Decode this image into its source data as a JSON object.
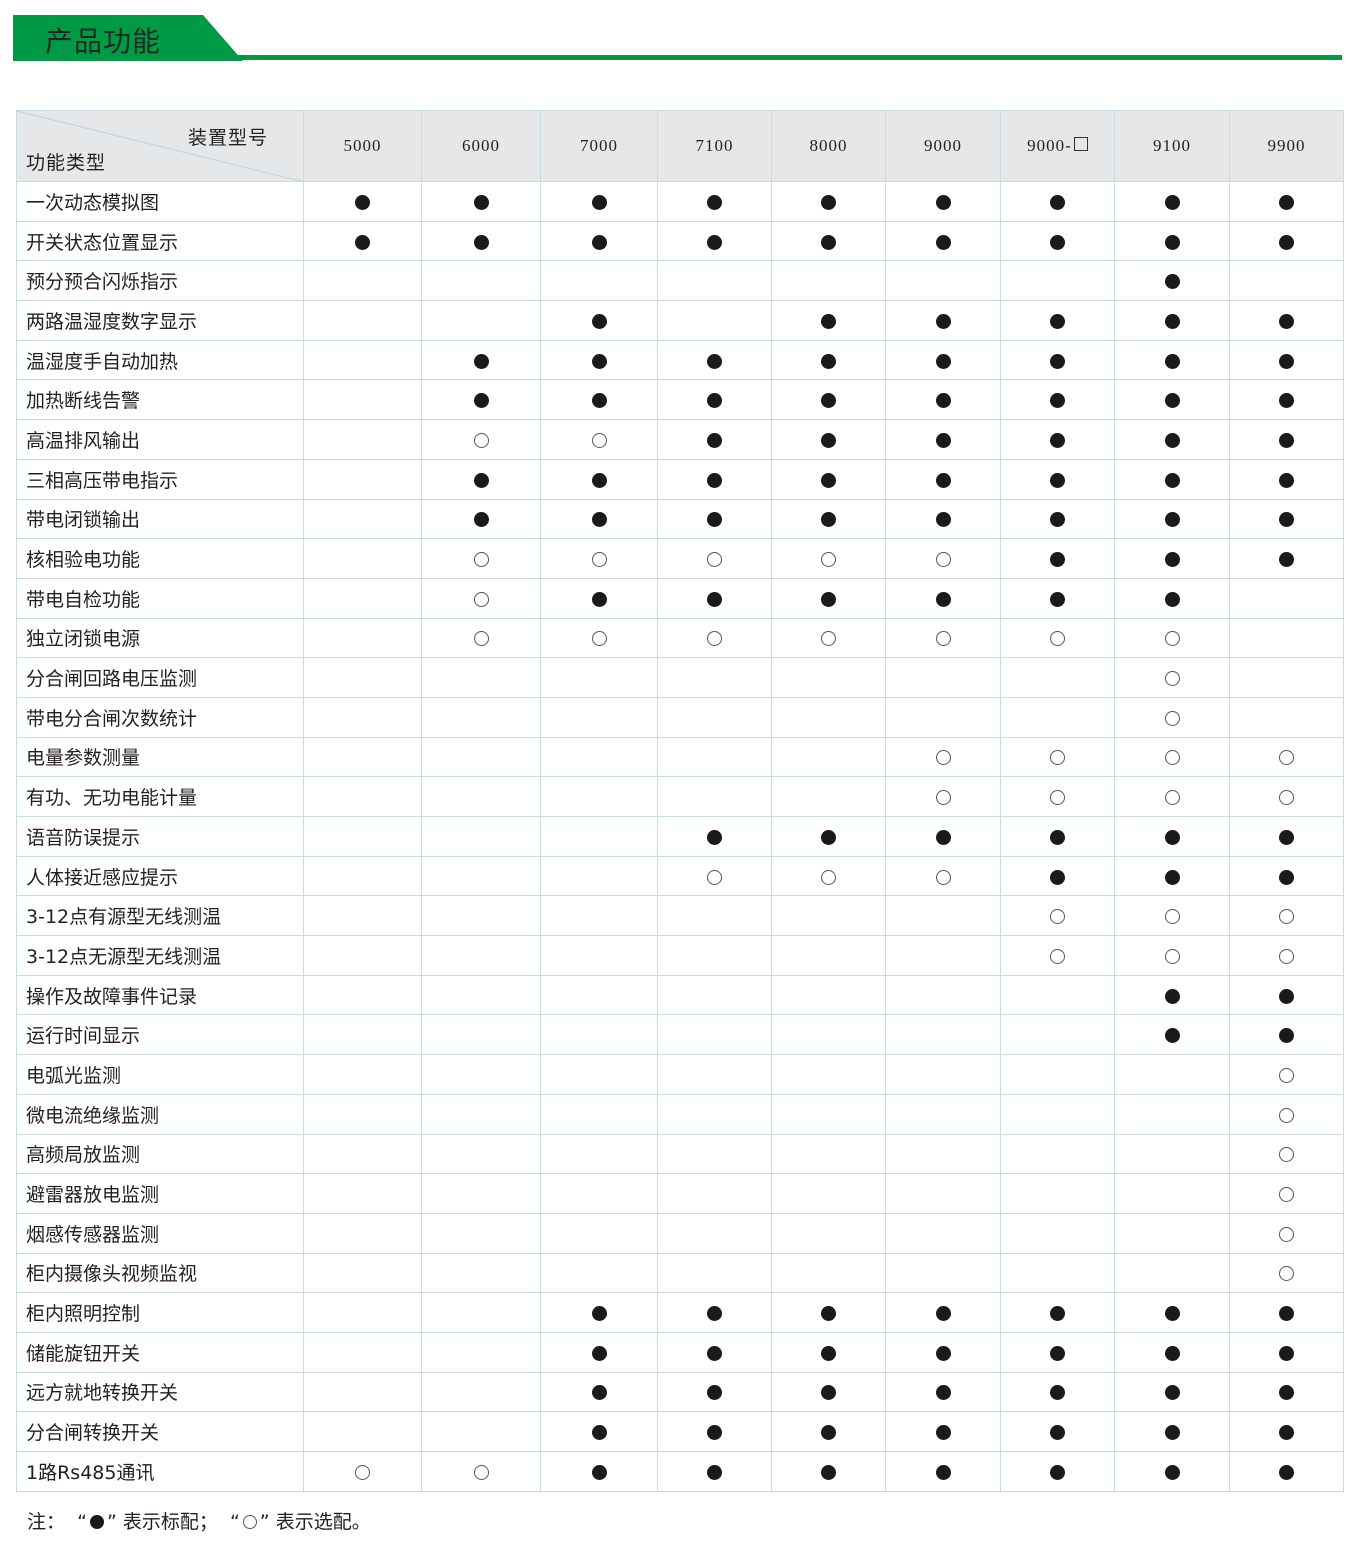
{
  "section_title": "产品功能",
  "table": {
    "corner_top_right": "装置型号",
    "corner_bottom_left": "功能类型",
    "models": [
      "5000",
      "6000",
      "7000",
      "7100",
      "8000",
      "9000",
      "9000-",
      "9100",
      "9900"
    ],
    "model_square_suffix": [
      false,
      false,
      false,
      false,
      false,
      false,
      true,
      false,
      false
    ],
    "legend_codes": {
      "S": "●",
      "O": "○"
    },
    "rows": [
      {
        "label": "一次动态模拟图",
        "values": [
          "S",
          "S",
          "S",
          "S",
          "S",
          "S",
          "S",
          "S",
          "S"
        ]
      },
      {
        "label": "开关状态位置显示",
        "values": [
          "S",
          "S",
          "S",
          "S",
          "S",
          "S",
          "S",
          "S",
          "S"
        ]
      },
      {
        "label": "预分预合闪烁指示",
        "values": [
          "",
          "",
          "",
          "",
          "",
          "",
          "",
          "S",
          ""
        ]
      },
      {
        "label": "两路温湿度数字显示",
        "values": [
          "",
          "",
          "S",
          "",
          "S",
          "S",
          "S",
          "S",
          "S"
        ]
      },
      {
        "label": "温湿度手自动加热",
        "values": [
          "",
          "S",
          "S",
          "S",
          "S",
          "S",
          "S",
          "S",
          "S"
        ]
      },
      {
        "label": "加热断线告警",
        "values": [
          "",
          "S",
          "S",
          "S",
          "S",
          "S",
          "S",
          "S",
          "S"
        ]
      },
      {
        "label": "高温排风输出",
        "values": [
          "",
          "O",
          "O",
          "S",
          "S",
          "S",
          "S",
          "S",
          "S"
        ]
      },
      {
        "label": "三相高压带电指示",
        "values": [
          "",
          "S",
          "S",
          "S",
          "S",
          "S",
          "S",
          "S",
          "S"
        ]
      },
      {
        "label": "带电闭锁输出",
        "values": [
          "",
          "S",
          "S",
          "S",
          "S",
          "S",
          "S",
          "S",
          "S"
        ]
      },
      {
        "label": "核相验电功能",
        "values": [
          "",
          "O",
          "O",
          "O",
          "O",
          "O",
          "S",
          "S",
          "S"
        ]
      },
      {
        "label": "带电自检功能",
        "values": [
          "",
          "O",
          "S",
          "S",
          "S",
          "S",
          "S",
          "S",
          ""
        ]
      },
      {
        "label": "独立闭锁电源",
        "values": [
          "",
          "O",
          "O",
          "O",
          "O",
          "O",
          "O",
          "O",
          ""
        ]
      },
      {
        "label": "分合闸回路电压监测",
        "values": [
          "",
          "",
          "",
          "",
          "",
          "",
          "",
          "O",
          ""
        ]
      },
      {
        "label": "带电分合闸次数统计",
        "values": [
          "",
          "",
          "",
          "",
          "",
          "",
          "",
          "O",
          ""
        ]
      },
      {
        "label": "电量参数测量",
        "values": [
          "",
          "",
          "",
          "",
          "",
          "O",
          "O",
          "O",
          "O"
        ]
      },
      {
        "label": "有功、无功电能计量",
        "values": [
          "",
          "",
          "",
          "",
          "",
          "O",
          "O",
          "O",
          "O"
        ]
      },
      {
        "label": "语音防误提示",
        "values": [
          "",
          "",
          "",
          "S",
          "S",
          "S",
          "S",
          "S",
          "S"
        ]
      },
      {
        "label": "人体接近感应提示",
        "values": [
          "",
          "",
          "",
          "O",
          "O",
          "O",
          "S",
          "S",
          "S"
        ]
      },
      {
        "label": "3-12点有源型无线测温",
        "values": [
          "",
          "",
          "",
          "",
          "",
          "",
          "O",
          "O",
          "O"
        ]
      },
      {
        "label": "3-12点无源型无线测温",
        "values": [
          "",
          "",
          "",
          "",
          "",
          "",
          "O",
          "O",
          "O"
        ]
      },
      {
        "label": "操作及故障事件记录",
        "values": [
          "",
          "",
          "",
          "",
          "",
          "",
          "",
          "S",
          "S"
        ]
      },
      {
        "label": "运行时间显示",
        "values": [
          "",
          "",
          "",
          "",
          "",
          "",
          "",
          "S",
          "S"
        ]
      },
      {
        "label": "电弧光监测",
        "values": [
          "",
          "",
          "",
          "",
          "",
          "",
          "",
          "",
          "O"
        ]
      },
      {
        "label": "微电流绝缘监测",
        "values": [
          "",
          "",
          "",
          "",
          "",
          "",
          "",
          "",
          "O"
        ]
      },
      {
        "label": "高频局放监测",
        "values": [
          "",
          "",
          "",
          "",
          "",
          "",
          "",
          "",
          "O"
        ]
      },
      {
        "label": "避雷器放电监测",
        "values": [
          "",
          "",
          "",
          "",
          "",
          "",
          "",
          "",
          "O"
        ]
      },
      {
        "label": "烟感传感器监测",
        "values": [
          "",
          "",
          "",
          "",
          "",
          "",
          "",
          "",
          "O"
        ]
      },
      {
        "label": "柜内摄像头视频监视",
        "values": [
          "",
          "",
          "",
          "",
          "",
          "",
          "",
          "",
          "O"
        ]
      },
      {
        "label": "柜内照明控制",
        "values": [
          "",
          "",
          "S",
          "S",
          "S",
          "S",
          "S",
          "S",
          "S"
        ]
      },
      {
        "label": "储能旋钮开关",
        "values": [
          "",
          "",
          "S",
          "S",
          "S",
          "S",
          "S",
          "S",
          "S"
        ]
      },
      {
        "label": "远方就地转换开关",
        "values": [
          "",
          "",
          "S",
          "S",
          "S",
          "S",
          "S",
          "S",
          "S"
        ]
      },
      {
        "label": "分合闸转换开关",
        "values": [
          "",
          "",
          "S",
          "S",
          "S",
          "S",
          "S",
          "S",
          "S"
        ]
      },
      {
        "label": "1路Rs485通讯",
        "values": [
          "O",
          "O",
          "S",
          "S",
          "S",
          "S",
          "S",
          "S",
          "S"
        ]
      }
    ]
  },
  "note": {
    "prefix": "注：",
    "q_open": "“",
    "q_close": "”",
    "standard_text": "表示标配；",
    "optional_text": "表示选配。"
  },
  "colors": {
    "brand_green": "#009a44",
    "header_bg": "#e6e7e9",
    "grid": "#c8dbe6"
  }
}
